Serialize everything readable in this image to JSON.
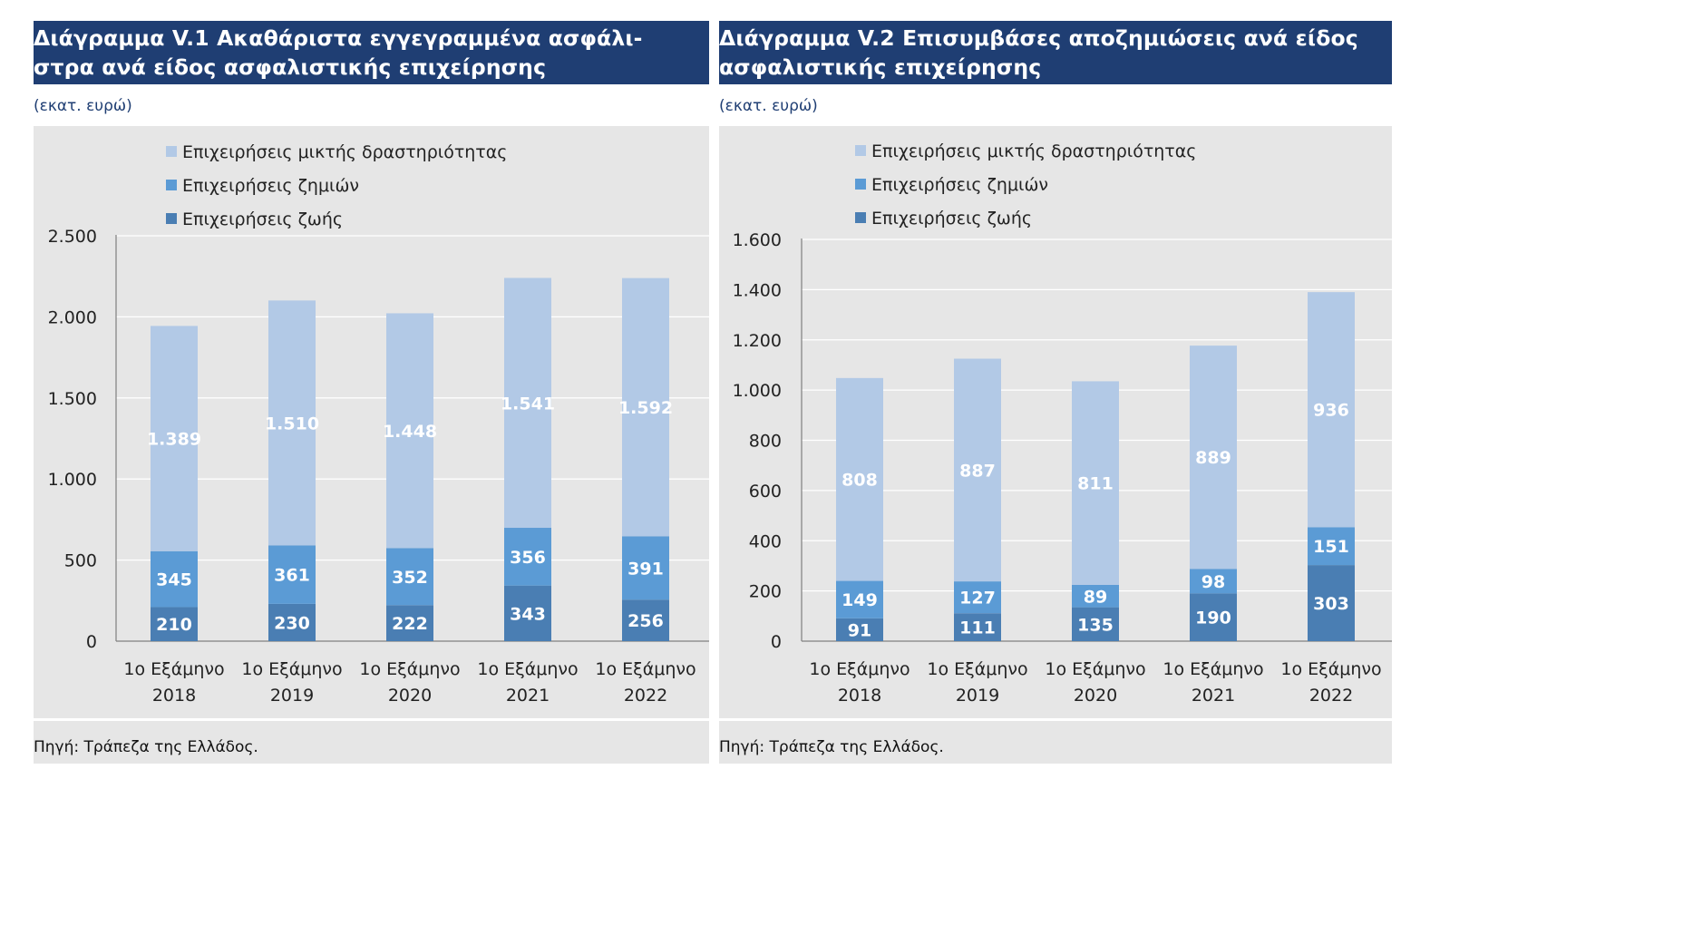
{
  "colors": {
    "title_bg": "#1f3e73",
    "chart_bg": "#e6e6e6",
    "mixed": "#b2c9e6",
    "nonlife": "#5b9bd5",
    "life": "#4a7eb3",
    "grid": "#ffffff"
  },
  "panels": [
    {
      "title_line1": "Διάγραμμα V.1 Ακαθάριστα εγγεγραμμένα ασφάλι-",
      "title_line2": "στρα ανά είδος ασφαλιστικής επιχείρησης",
      "unit": "(εκατ. ευρώ)",
      "source": "Πηγή: Τράπεζα της Ελλάδος."
    },
    {
      "title_line1": "Διάγραμμα V.2 Επισυμβάσες αποζημιώσεις ανά είδος",
      "title_line2": "ασφαλιστικής επιχείρησης",
      "unit": "(εκατ. ευρώ)",
      "source": "Πηγή: Τράπεζα της Ελλάδος."
    }
  ],
  "chart_data": [
    {
      "type": "bar",
      "stacked": true,
      "categories": [
        [
          "1ο Εξάμηνο",
          "2018"
        ],
        [
          "1ο Εξάμηνο",
          "2019"
        ],
        [
          "1ο Εξάμηνο",
          "2020"
        ],
        [
          "1ο Εξάμηνο",
          "2021"
        ],
        [
          "1ο Εξάμηνο",
          "2022"
        ]
      ],
      "series": [
        {
          "name": "Επιχειρήσεις ζωής",
          "values": [
            210,
            230,
            222,
            343,
            256
          ],
          "labels": [
            "210",
            "230",
            "222",
            "343",
            "256"
          ]
        },
        {
          "name": "Επιχειρήσεις ζημιών",
          "values": [
            345,
            361,
            352,
            356,
            391
          ],
          "labels": [
            "345",
            "361",
            "352",
            "356",
            "391"
          ]
        },
        {
          "name": "Επιχειρήσεις μικτής δραστηριότητας",
          "values": [
            1389,
            1510,
            1448,
            1541,
            1592
          ],
          "labels": [
            "1.389",
            "1.510",
            "1.448",
            "1.541",
            "1.592"
          ]
        }
      ],
      "legend_order": [
        2,
        1,
        0
      ],
      "ylim": [
        0,
        2500
      ],
      "yticks": [
        0,
        500,
        1000,
        1500,
        2000,
        2500
      ],
      "ytick_labels": [
        "0",
        "500",
        "1.000",
        "1.500",
        "2.000",
        "2.500"
      ],
      "grid": true,
      "legend_position": "top-left"
    },
    {
      "type": "bar",
      "stacked": true,
      "categories": [
        [
          "1ο Εξάμηνο",
          "2018"
        ],
        [
          "1ο Εξάμηνο",
          "2019"
        ],
        [
          "1ο Εξάμηνο",
          "2020"
        ],
        [
          "1ο Εξάμηνο",
          "2021"
        ],
        [
          "1ο Εξάμηνο",
          "2022"
        ]
      ],
      "series": [
        {
          "name": "Επιχειρήσεις ζωής",
          "values": [
            91,
            111,
            135,
            190,
            303
          ],
          "labels": [
            "91",
            "111",
            "135",
            "190",
            "303"
          ]
        },
        {
          "name": "Επιχειρήσεις ζημιών",
          "values": [
            149,
            127,
            89,
            98,
            151
          ],
          "labels": [
            "149",
            "127",
            "89",
            "98",
            "151"
          ]
        },
        {
          "name": "Επιχειρήσεις μικτής δραστηριότητας",
          "values": [
            808,
            887,
            811,
            889,
            936
          ],
          "labels": [
            "808",
            "887",
            "811",
            "889",
            "936"
          ]
        }
      ],
      "legend_order": [
        2,
        1,
        0
      ],
      "ylim": [
        0,
        1600
      ],
      "yticks": [
        0,
        200,
        400,
        600,
        800,
        1000,
        1200,
        1400,
        1600
      ],
      "ytick_labels": [
        "0",
        "200",
        "400",
        "600",
        "800",
        "1.000",
        "1.200",
        "1.400",
        "1.600"
      ],
      "grid": true,
      "legend_position": "top-left"
    }
  ]
}
